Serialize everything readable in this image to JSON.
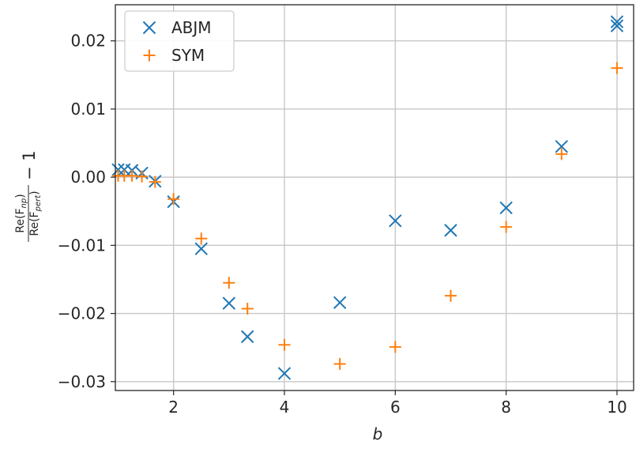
{
  "chart_data": {
    "type": "scatter",
    "title": "",
    "xlabel": "b",
    "ylabel": {
      "numerator": "Re(F",
      "numerator_sub": "np",
      "denominator": "Re(F",
      "denominator_sub": "pert",
      "suffix": "− 1"
    },
    "xlim": [
      0.95,
      10.3
    ],
    "ylim": [
      -0.0313,
      0.0253
    ],
    "xticks": [
      2,
      4,
      6,
      8,
      10
    ],
    "xtick_labels": [
      "2",
      "4",
      "6",
      "8",
      "10"
    ],
    "yticks": [
      -0.03,
      -0.02,
      -0.01,
      0.0,
      0.01,
      0.02
    ],
    "ytick_labels": [
      "−0.03",
      "−0.02",
      "−0.01",
      "0.00",
      "0.01",
      "0.02"
    ],
    "grid": true,
    "legend_position": "top-left",
    "series": [
      {
        "name": "ABJM",
        "marker": "x",
        "color": "#1f77b4",
        "points": [
          [
            1.0,
            0.0011
          ],
          [
            1.111,
            0.0011
          ],
          [
            1.25,
            0.001
          ],
          [
            1.429,
            0.0006
          ],
          [
            1.667,
            -0.0006
          ],
          [
            2.0,
            -0.0036
          ],
          [
            2.5,
            -0.0105
          ],
          [
            3.0,
            -0.0185
          ],
          [
            3.333,
            -0.0234
          ],
          [
            4.0,
            -0.0288
          ],
          [
            5.0,
            -0.0184
          ],
          [
            6.0,
            -0.0064
          ],
          [
            7.0,
            -0.0078
          ],
          [
            8.0,
            -0.0045
          ],
          [
            9.0,
            0.0045
          ],
          [
            10.0,
            0.0228
          ],
          [
            10.0,
            0.0222
          ]
        ]
      },
      {
        "name": "SYM",
        "marker": "+",
        "color": "#ff7f0e",
        "points": [
          [
            1.0,
            0.0002
          ],
          [
            1.111,
            0.0002
          ],
          [
            1.25,
            0.0002
          ],
          [
            1.429,
            0.0001
          ],
          [
            1.667,
            -0.0007
          ],
          [
            2.0,
            -0.0032
          ],
          [
            2.5,
            -0.009
          ],
          [
            3.0,
            -0.0155
          ],
          [
            3.333,
            -0.0193
          ],
          [
            4.0,
            -0.0246
          ],
          [
            5.0,
            -0.0274
          ],
          [
            6.0,
            -0.0249
          ],
          [
            7.0,
            -0.0174
          ],
          [
            8.0,
            -0.0073
          ],
          [
            9.0,
            0.0034
          ],
          [
            10.0,
            0.016
          ]
        ]
      }
    ]
  }
}
